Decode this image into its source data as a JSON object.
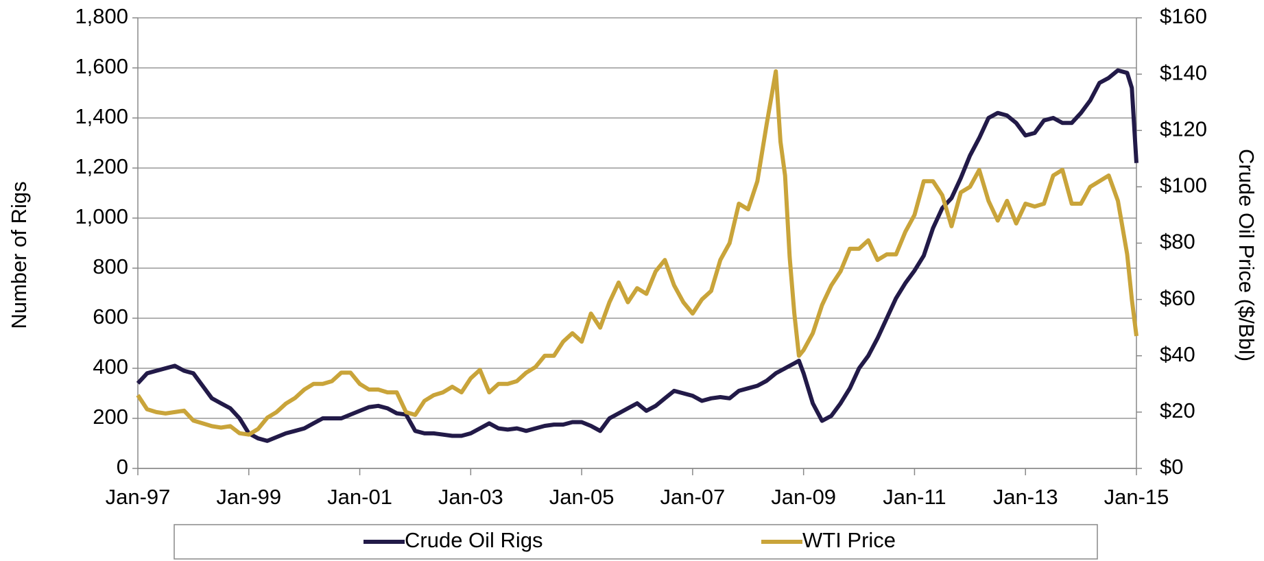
{
  "chart_data": {
    "type": "line",
    "y_label": "Number of Rigs",
    "y2_label": "Crude Oil Price ($/Bbl)",
    "x": [
      "1997-01",
      "1997-03",
      "1997-05",
      "1997-07",
      "1997-09",
      "1997-11",
      "1998-01",
      "1998-03",
      "1998-05",
      "1998-07",
      "1998-09",
      "1998-11",
      "1999-01",
      "1999-03",
      "1999-05",
      "1999-07",
      "1999-09",
      "1999-11",
      "2000-01",
      "2000-03",
      "2000-05",
      "2000-07",
      "2000-09",
      "2000-11",
      "2001-01",
      "2001-03",
      "2001-05",
      "2001-07",
      "2001-09",
      "2001-11",
      "2002-01",
      "2002-03",
      "2002-05",
      "2002-07",
      "2002-09",
      "2002-11",
      "2003-01",
      "2003-03",
      "2003-05",
      "2003-07",
      "2003-09",
      "2003-11",
      "2004-01",
      "2004-03",
      "2004-05",
      "2004-07",
      "2004-09",
      "2004-11",
      "2005-01",
      "2005-03",
      "2005-05",
      "2005-07",
      "2005-09",
      "2005-11",
      "2006-01",
      "2006-03",
      "2006-05",
      "2006-07",
      "2006-09",
      "2006-11",
      "2007-01",
      "2007-03",
      "2007-05",
      "2007-07",
      "2007-09",
      "2007-11",
      "2008-01",
      "2008-03",
      "2008-05",
      "2008-07",
      "2008-08",
      "2008-09",
      "2008-10",
      "2008-11",
      "2008-12",
      "2009-01",
      "2009-03",
      "2009-05",
      "2009-07",
      "2009-09",
      "2009-11",
      "2010-01",
      "2010-03",
      "2010-05",
      "2010-07",
      "2010-09",
      "2010-11",
      "2011-01",
      "2011-03",
      "2011-05",
      "2011-07",
      "2011-09",
      "2011-11",
      "2012-01",
      "2012-03",
      "2012-05",
      "2012-07",
      "2012-09",
      "2012-11",
      "2013-01",
      "2013-03",
      "2013-05",
      "2013-07",
      "2013-09",
      "2013-11",
      "2014-01",
      "2014-03",
      "2014-05",
      "2014-07",
      "2014-09",
      "2014-11",
      "2014-12",
      "2015-01"
    ],
    "series": [
      {
        "name": "Crude Oil Rigs",
        "color": "#221a48",
        "values": [
          340,
          380,
          390,
          400,
          410,
          390,
          380,
          330,
          280,
          260,
          240,
          200,
          140,
          120,
          110,
          125,
          140,
          150,
          160,
          180,
          200,
          200,
          200,
          215,
          230,
          245,
          250,
          240,
          220,
          215,
          150,
          140,
          140,
          135,
          130,
          130,
          140,
          160,
          180,
          160,
          155,
          160,
          150,
          160,
          170,
          175,
          175,
          185,
          185,
          170,
          150,
          200,
          220,
          240,
          260,
          230,
          250,
          280,
          310,
          300,
          290,
          270,
          280,
          285,
          280,
          310,
          320,
          330,
          350,
          380,
          390,
          400,
          410,
          420,
          430,
          380,
          260,
          190,
          210,
          260,
          320,
          400,
          450,
          520,
          600,
          680,
          740,
          790,
          850,
          960,
          1040,
          1080,
          1160,
          1250,
          1320,
          1400,
          1420,
          1410,
          1380,
          1330,
          1340,
          1390,
          1400,
          1380,
          1380,
          1420,
          1470,
          1540,
          1560,
          1590,
          1580,
          1520,
          1220
        ]
      },
      {
        "name": "WTI Price",
        "color": "#c9a43a",
        "axis": "y2",
        "values": [
          26,
          21,
          20,
          19.5,
          20,
          20.5,
          17,
          16,
          15,
          14.5,
          15,
          12.5,
          12,
          14,
          18,
          20,
          23,
          25,
          28,
          30,
          30,
          31,
          34,
          34,
          30,
          28,
          28,
          27,
          27,
          20,
          19,
          24,
          26,
          27,
          29,
          27,
          32,
          35,
          27,
          30,
          30,
          31,
          34,
          36,
          40,
          40,
          45,
          48,
          45,
          55,
          50,
          59,
          66,
          59,
          64,
          62,
          70,
          74,
          65,
          59,
          55,
          60,
          63,
          74,
          80,
          94,
          92,
          102,
          122,
          141,
          116,
          104,
          75,
          55,
          40,
          42,
          48,
          58,
          65,
          70,
          78,
          78,
          81,
          74,
          76,
          76,
          84,
          90,
          102,
          102,
          97,
          86,
          98,
          100,
          106,
          95,
          88,
          95,
          87,
          94,
          93,
          94,
          104,
          106,
          94,
          94,
          100,
          102,
          104,
          95,
          76,
          60,
          47
        ]
      }
    ],
    "xlim": [
      "1997-01",
      "2015-01"
    ],
    "xticks": [
      {
        "value": "1997-01",
        "label": "Jan-97"
      },
      {
        "value": "1999-01",
        "label": "Jan-99"
      },
      {
        "value": "2001-01",
        "label": "Jan-01"
      },
      {
        "value": "2003-01",
        "label": "Jan-03"
      },
      {
        "value": "2005-01",
        "label": "Jan-05"
      },
      {
        "value": "2007-01",
        "label": "Jan-07"
      },
      {
        "value": "2009-01",
        "label": "Jan-09"
      },
      {
        "value": "2011-01",
        "label": "Jan-11"
      },
      {
        "value": "2013-01",
        "label": "Jan-13"
      },
      {
        "value": "2015-01",
        "label": "Jan-15"
      }
    ],
    "ylim": [
      0,
      1800
    ],
    "yticks": [
      0,
      200,
      400,
      600,
      800,
      {
        "value": 1000,
        "label": "1,000"
      },
      {
        "value": 1200,
        "label": "1,200"
      },
      {
        "value": 1400,
        "label": "1,400"
      },
      {
        "value": 1600,
        "label": "1,600"
      },
      {
        "value": 1800,
        "label": "1,800"
      }
    ],
    "y2lim": [
      0,
      160
    ],
    "y2ticks": [
      {
        "value": 0,
        "label": "$0"
      },
      {
        "value": 20,
        "label": "$20"
      },
      {
        "value": 40,
        "label": "$40"
      },
      {
        "value": 60,
        "label": "$60"
      },
      {
        "value": 80,
        "label": "$80"
      },
      {
        "value": 100,
        "label": "$100"
      },
      {
        "value": 120,
        "label": "$120"
      },
      {
        "value": 140,
        "label": "$140"
      },
      {
        "value": 160,
        "label": "$160"
      }
    ],
    "grid": true,
    "legend": "bottom"
  }
}
